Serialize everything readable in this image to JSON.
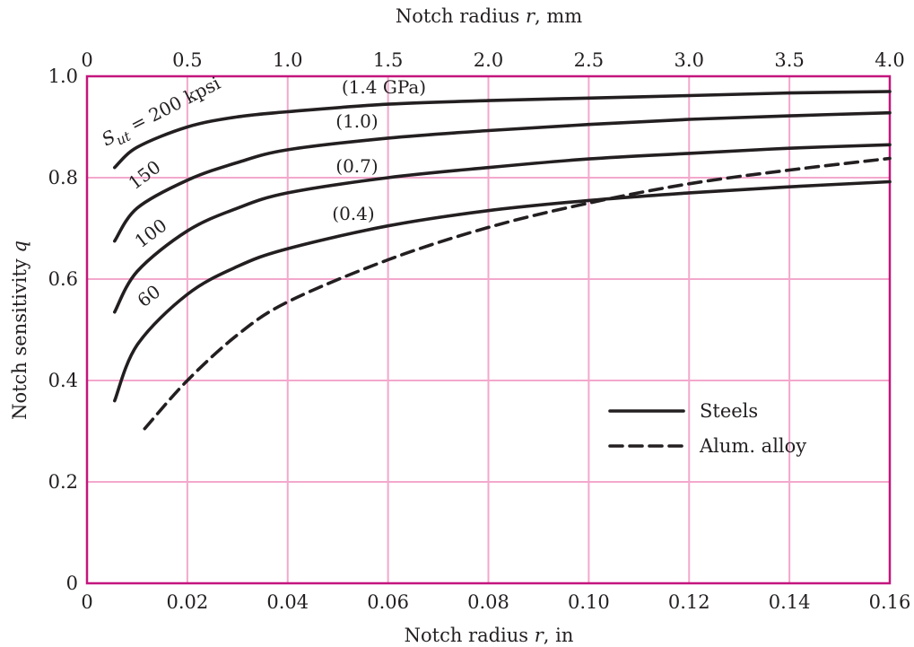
{
  "chart_data": {
    "type": "line",
    "xlabel": "Notch radius r, in",
    "x2label": "Notch radius r, mm",
    "ylabel": "Notch sensitivity q",
    "xlim": [
      0,
      0.16
    ],
    "x2lim": [
      0,
      4.0
    ],
    "ylim": [
      0,
      1.0
    ],
    "x_ticks": [
      "0",
      "0.02",
      "0.04",
      "0.06",
      "0.08",
      "0.10",
      "0.12",
      "0.14",
      "0.16"
    ],
    "x2_ticks": [
      "0",
      "0.5",
      "1.0",
      "1.5",
      "2.0",
      "2.5",
      "3.0",
      "3.5",
      "4.0"
    ],
    "y_ticks": [
      "0",
      "0.2",
      "0.4",
      "0.6",
      "0.8",
      "1.0"
    ],
    "grid": true,
    "legend": {
      "placement": "lower-right",
      "entries": [
        {
          "label": "Steels",
          "style": "solid"
        },
        {
          "label": "Alum. alloy",
          "style": "dashed"
        }
      ]
    },
    "series": [
      {
        "label": "S_ut = 200 kpsi",
        "label_si": "(1.4 GPa)",
        "style": "solid",
        "x": [
          0.0055,
          0.01,
          0.02,
          0.03,
          0.04,
          0.06,
          0.08,
          0.1,
          0.12,
          0.14,
          0.16
        ],
        "y": [
          0.82,
          0.86,
          0.9,
          0.92,
          0.93,
          0.945,
          0.952,
          0.957,
          0.962,
          0.967,
          0.97
        ]
      },
      {
        "label": "150",
        "label_si": "(1.0)",
        "style": "solid",
        "x": [
          0.0055,
          0.01,
          0.02,
          0.03,
          0.04,
          0.06,
          0.08,
          0.1,
          0.12,
          0.14,
          0.16
        ],
        "y": [
          0.675,
          0.74,
          0.795,
          0.83,
          0.855,
          0.878,
          0.893,
          0.905,
          0.915,
          0.922,
          0.928
        ]
      },
      {
        "label": "100",
        "label_si": "(0.7)",
        "style": "solid",
        "x": [
          0.0055,
          0.01,
          0.02,
          0.03,
          0.04,
          0.06,
          0.08,
          0.1,
          0.12,
          0.14,
          0.16
        ],
        "y": [
          0.535,
          0.615,
          0.695,
          0.74,
          0.77,
          0.8,
          0.82,
          0.837,
          0.848,
          0.858,
          0.865
        ]
      },
      {
        "label": "60",
        "label_si": "(0.4)",
        "style": "solid",
        "x": [
          0.0055,
          0.01,
          0.02,
          0.03,
          0.04,
          0.06,
          0.08,
          0.1,
          0.12,
          0.14,
          0.16
        ],
        "y": [
          0.36,
          0.47,
          0.57,
          0.625,
          0.66,
          0.705,
          0.735,
          0.755,
          0.77,
          0.782,
          0.792
        ]
      },
      {
        "label": "Alum. alloy",
        "style": "dashed",
        "x": [
          0.0115,
          0.02,
          0.03,
          0.04,
          0.06,
          0.08,
          0.1,
          0.12,
          0.14,
          0.16
        ],
        "y": [
          0.305,
          0.4,
          0.49,
          0.555,
          0.638,
          0.702,
          0.75,
          0.788,
          0.815,
          0.838
        ]
      }
    ],
    "annotations": [
      {
        "text": "S",
        "sub": "ut",
        "rest": " = 200 kpsi",
        "series": 0
      },
      {
        "text": "(1.4 GPa)",
        "series": 0
      },
      {
        "text": "150",
        "series": 1
      },
      {
        "text": "(1.0)",
        "series": 1
      },
      {
        "text": "100",
        "series": 2
      },
      {
        "text": "(0.7)",
        "series": 2
      },
      {
        "text": "60",
        "series": 3
      },
      {
        "text": "(0.4)",
        "series": 3
      }
    ]
  }
}
